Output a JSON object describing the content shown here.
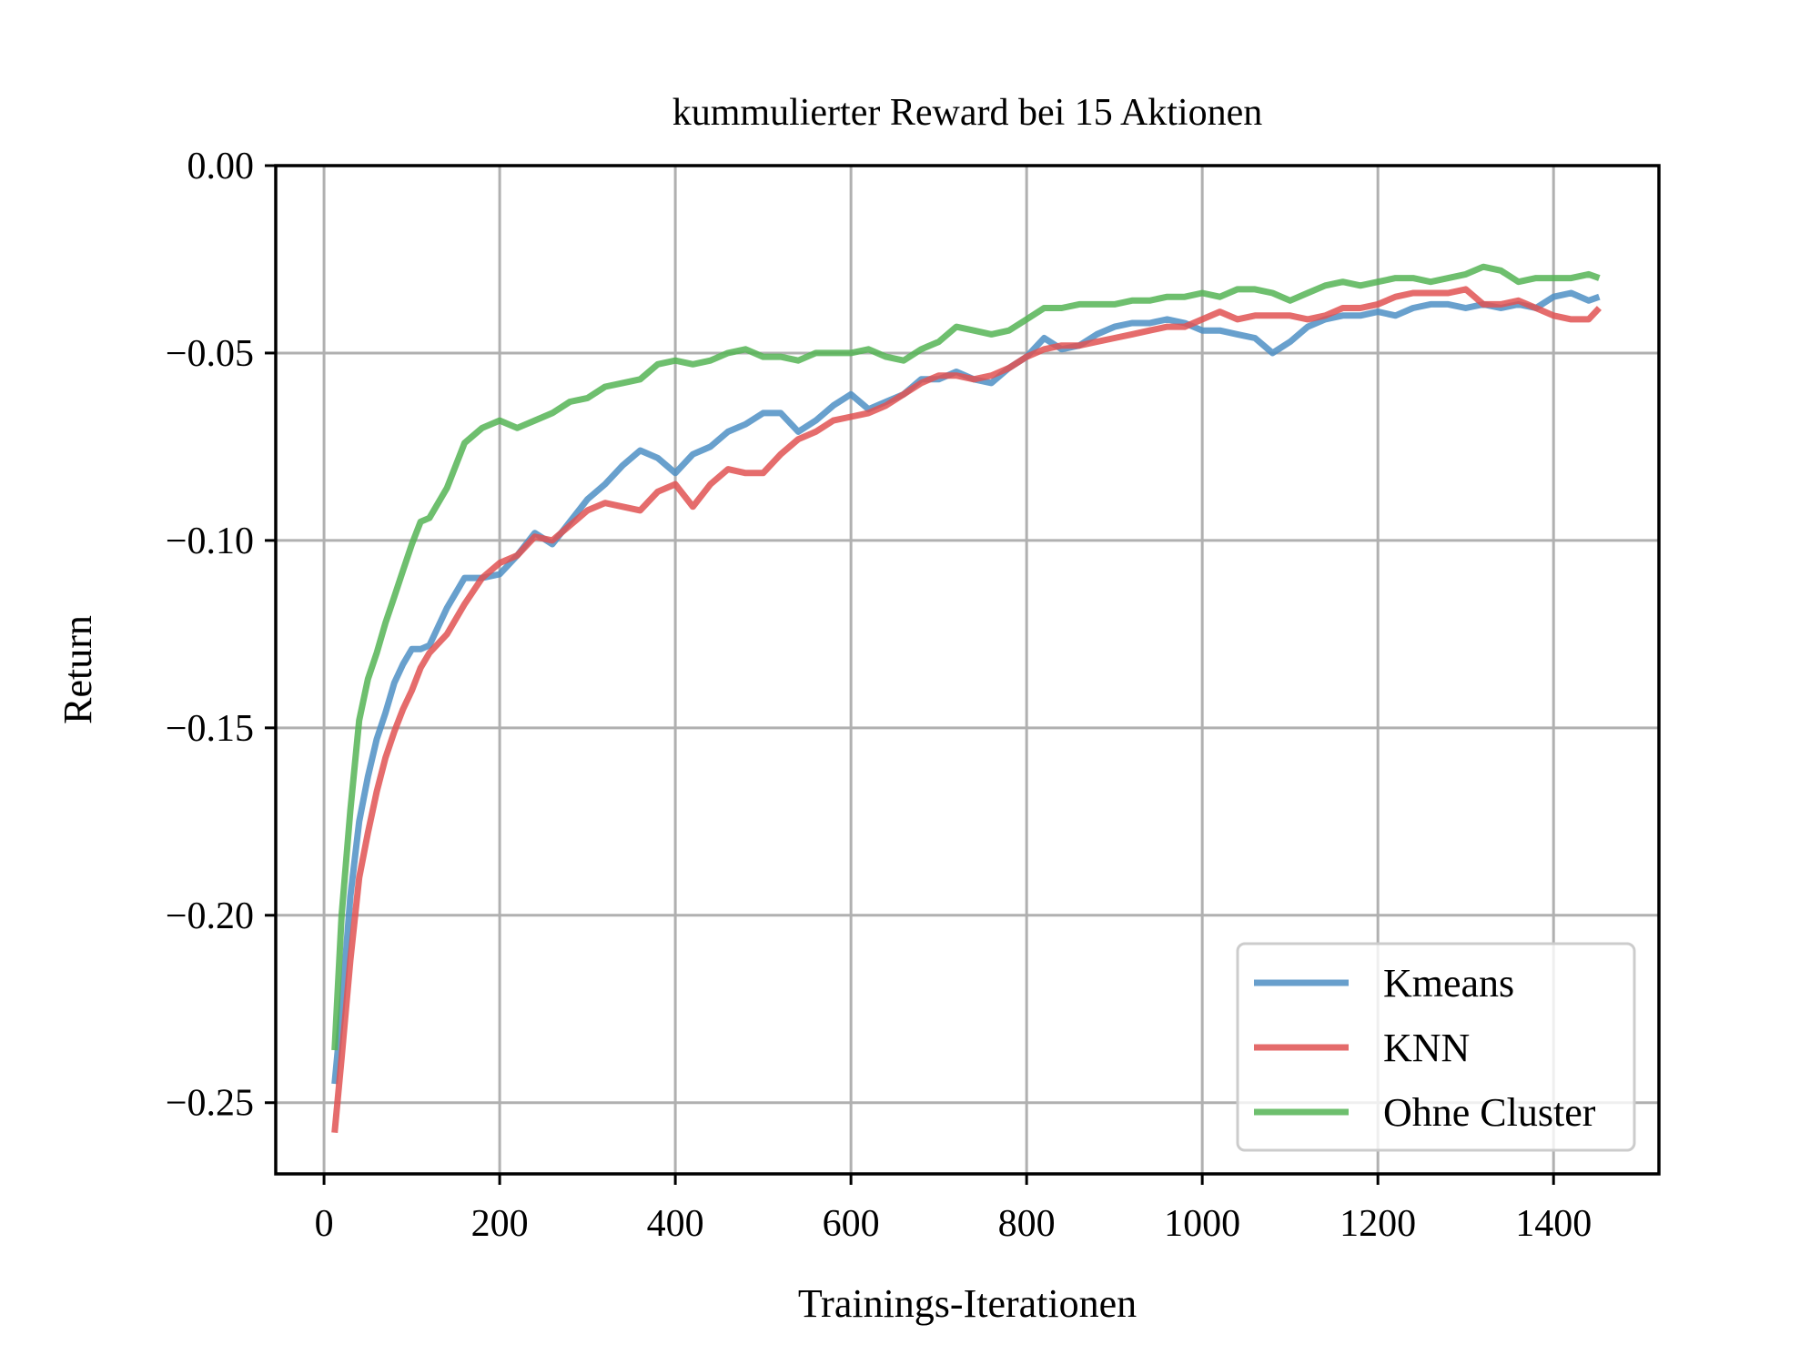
{
  "colors": {
    "kmeans": "#4e8fc4",
    "knn": "#e05252",
    "ohne_cluster": "#55b455",
    "grid": "#b0b0b0"
  },
  "chart_data": {
    "type": "line",
    "title": "kummulierter Reward bei 15 Aktionen",
    "xlabel": "Trainings-Iterationen",
    "ylabel": "Return",
    "xlim": [
      -55,
      1520
    ],
    "ylim": [
      -0.269,
      0.0
    ],
    "grid": true,
    "legend_position": "bottom-right",
    "x_ticks": [
      0,
      200,
      400,
      600,
      800,
      1000,
      1200,
      1400
    ],
    "x_tick_labels": [
      "0",
      "200",
      "400",
      "600",
      "800",
      "1000",
      "1200",
      "1400"
    ],
    "y_ticks": [
      0.0,
      -0.05,
      -0.1,
      -0.15,
      -0.2,
      -0.25
    ],
    "y_tick_labels": [
      "0.00",
      "−0.05",
      "−0.10",
      "−0.15",
      "−0.20",
      "−0.25"
    ],
    "x": [
      12,
      20,
      30,
      40,
      50,
      60,
      70,
      80,
      90,
      100,
      110,
      120,
      140,
      160,
      180,
      200,
      220,
      240,
      260,
      280,
      300,
      320,
      340,
      360,
      380,
      400,
      420,
      440,
      460,
      480,
      500,
      520,
      540,
      560,
      580,
      600,
      620,
      640,
      660,
      680,
      700,
      720,
      740,
      760,
      780,
      800,
      820,
      840,
      860,
      880,
      900,
      920,
      940,
      960,
      980,
      1000,
      1020,
      1040,
      1060,
      1080,
      1100,
      1120,
      1140,
      1160,
      1180,
      1200,
      1220,
      1240,
      1260,
      1280,
      1300,
      1320,
      1340,
      1360,
      1380,
      1400,
      1420,
      1440,
      1452
    ],
    "series": [
      {
        "name": "Kmeans",
        "color_key": "kmeans",
        "values": [
          -0.245,
          -0.225,
          -0.195,
          -0.175,
          -0.163,
          -0.153,
          -0.146,
          -0.138,
          -0.133,
          -0.129,
          -0.129,
          -0.128,
          -0.118,
          -0.11,
          -0.11,
          -0.109,
          -0.104,
          -0.098,
          -0.101,
          -0.095,
          -0.089,
          -0.085,
          -0.08,
          -0.076,
          -0.078,
          -0.082,
          -0.077,
          -0.075,
          -0.071,
          -0.069,
          -0.066,
          -0.066,
          -0.071,
          -0.068,
          -0.064,
          -0.061,
          -0.065,
          -0.063,
          -0.061,
          -0.057,
          -0.057,
          -0.055,
          -0.057,
          -0.058,
          -0.054,
          -0.051,
          -0.046,
          -0.049,
          -0.048,
          -0.045,
          -0.043,
          -0.042,
          -0.042,
          -0.041,
          -0.042,
          -0.044,
          -0.044,
          -0.045,
          -0.046,
          -0.05,
          -0.047,
          -0.043,
          -0.041,
          -0.04,
          -0.04,
          -0.039,
          -0.04,
          -0.038,
          -0.037,
          -0.037,
          -0.038,
          -0.037,
          -0.038,
          -0.037,
          -0.038,
          -0.035,
          -0.034,
          -0.036,
          -0.035
        ]
      },
      {
        "name": "KNN",
        "color_key": "knn",
        "values": [
          -0.258,
          -0.238,
          -0.212,
          -0.19,
          -0.178,
          -0.167,
          -0.158,
          -0.151,
          -0.145,
          -0.14,
          -0.134,
          -0.13,
          -0.125,
          -0.117,
          -0.11,
          -0.106,
          -0.104,
          -0.099,
          -0.1,
          -0.096,
          -0.092,
          -0.09,
          -0.091,
          -0.092,
          -0.087,
          -0.085,
          -0.091,
          -0.085,
          -0.081,
          -0.082,
          -0.082,
          -0.077,
          -0.073,
          -0.071,
          -0.068,
          -0.067,
          -0.066,
          -0.064,
          -0.061,
          -0.058,
          -0.056,
          -0.056,
          -0.057,
          -0.056,
          -0.054,
          -0.051,
          -0.049,
          -0.048,
          -0.048,
          -0.047,
          -0.046,
          -0.045,
          -0.044,
          -0.043,
          -0.043,
          -0.041,
          -0.039,
          -0.041,
          -0.04,
          -0.04,
          -0.04,
          -0.041,
          -0.04,
          -0.038,
          -0.038,
          -0.037,
          -0.035,
          -0.034,
          -0.034,
          -0.034,
          -0.033,
          -0.037,
          -0.037,
          -0.036,
          -0.038,
          -0.04,
          -0.041,
          -0.041,
          -0.038
        ]
      },
      {
        "name": "Ohne Cluster",
        "color_key": "ohne_cluster",
        "values": [
          -0.236,
          -0.2,
          -0.172,
          -0.148,
          -0.137,
          -0.13,
          -0.122,
          -0.115,
          -0.108,
          -0.101,
          -0.095,
          -0.094,
          -0.086,
          -0.074,
          -0.07,
          -0.068,
          -0.07,
          -0.068,
          -0.066,
          -0.063,
          -0.062,
          -0.059,
          -0.058,
          -0.057,
          -0.053,
          -0.052,
          -0.053,
          -0.052,
          -0.05,
          -0.049,
          -0.051,
          -0.051,
          -0.052,
          -0.05,
          -0.05,
          -0.05,
          -0.049,
          -0.051,
          -0.052,
          -0.049,
          -0.047,
          -0.043,
          -0.044,
          -0.045,
          -0.044,
          -0.041,
          -0.038,
          -0.038,
          -0.037,
          -0.037,
          -0.037,
          -0.036,
          -0.036,
          -0.035,
          -0.035,
          -0.034,
          -0.035,
          -0.033,
          -0.033,
          -0.034,
          -0.036,
          -0.034,
          -0.032,
          -0.031,
          -0.032,
          -0.031,
          -0.03,
          -0.03,
          -0.031,
          -0.03,
          -0.029,
          -0.027,
          -0.028,
          -0.031,
          -0.03,
          -0.03,
          -0.03,
          -0.029,
          -0.03
        ]
      }
    ]
  }
}
